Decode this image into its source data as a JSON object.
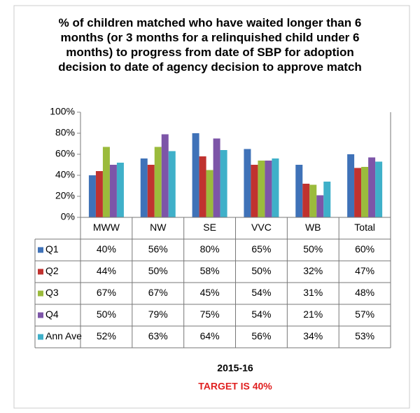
{
  "chart_data": {
    "type": "bar",
    "title": "% of children matched who have waited longer than 6 months (or 3 months for a relinquished child under 6 months) to progress from date of SBP for adoption decision to date of agency decision to approve match",
    "categories": [
      "MWW",
      "NW",
      "SE",
      "VVC",
      "WB",
      "Total"
    ],
    "series": [
      {
        "name": "Q1",
        "color": "#3f72b8",
        "values": [
          40,
          56,
          80,
          65,
          50,
          60
        ],
        "value_labels": [
          "40%",
          "56%",
          "80%",
          "65%",
          "50%",
          "60%"
        ]
      },
      {
        "name": "Q2",
        "color": "#c0322f",
        "values": [
          44,
          50,
          58,
          50,
          32,
          47
        ],
        "value_labels": [
          "44%",
          "50%",
          "58%",
          "50%",
          "32%",
          "47%"
        ]
      },
      {
        "name": "Q3",
        "color": "#9bbb3c",
        "values": [
          67,
          67,
          45,
          54,
          31,
          48
        ],
        "value_labels": [
          "67%",
          "67%",
          "45%",
          "54%",
          "31%",
          "48%"
        ]
      },
      {
        "name": "Q4",
        "color": "#7d55a8",
        "values": [
          50,
          79,
          75,
          54,
          21,
          57
        ],
        "value_labels": [
          "50%",
          "79%",
          "75%",
          "54%",
          "21%",
          "57%"
        ]
      },
      {
        "name": "Ann Ave",
        "color": "#3fb0c9",
        "values": [
          52,
          63,
          64,
          56,
          34,
          53
        ],
        "value_labels": [
          "52%",
          "63%",
          "64%",
          "56%",
          "34%",
          "53%"
        ]
      }
    ],
    "ylim": [
      0,
      100
    ],
    "yticks": [
      {
        "value": 0,
        "label": "0%"
      },
      {
        "value": 20,
        "label": "20%"
      },
      {
        "value": 40,
        "label": "40%"
      },
      {
        "value": 60,
        "label": "60%"
      },
      {
        "value": 80,
        "label": "80%"
      },
      {
        "value": 100,
        "label": "100%"
      }
    ],
    "grid": false,
    "x_label": "2015-16",
    "annotation": "TARGET IS 40%"
  }
}
